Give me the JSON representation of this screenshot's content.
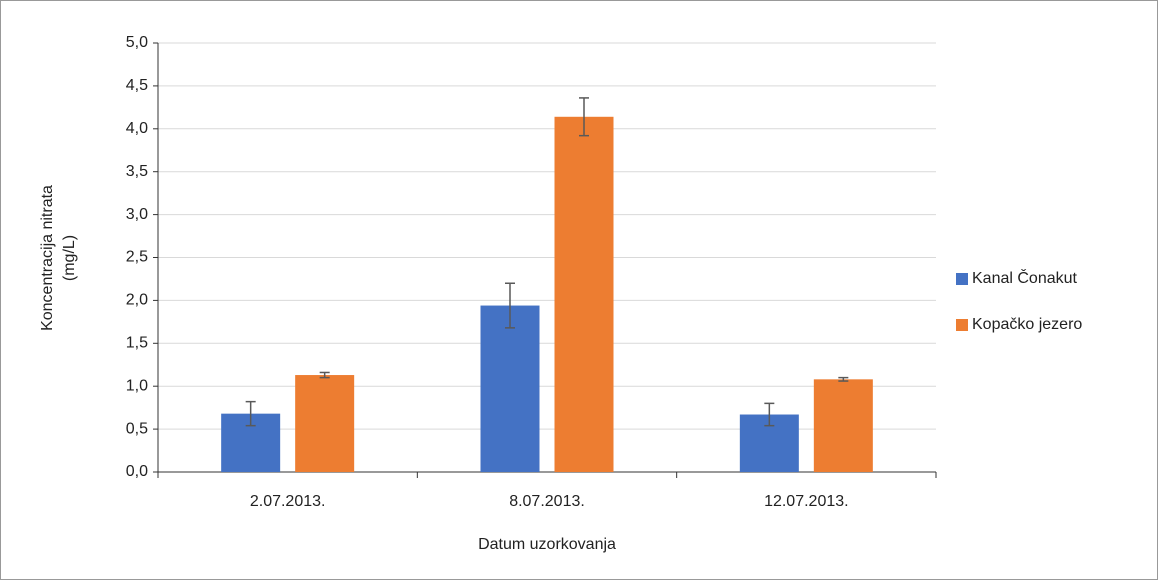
{
  "chart_data": {
    "type": "bar",
    "xlabel": "Datum uzorkovanja",
    "ylabel": [
      "Koncentracija nitrata",
      "(mg/L)"
    ],
    "categories": [
      "2.07.2013.",
      "8.07.2013.",
      "12.07.2013."
    ],
    "series": [
      {
        "name": "Kanal Čonakut",
        "color": "#4472c4",
        "values": [
          0.68,
          1.94,
          0.67
        ],
        "errors": [
          0.14,
          0.26,
          0.13
        ]
      },
      {
        "name": "Kopačko jezero",
        "color": "#ed7d31",
        "values": [
          1.13,
          4.14,
          1.08
        ],
        "errors": [
          0.03,
          0.22,
          0.02
        ]
      }
    ],
    "ylim": [
      0,
      5
    ],
    "yticks": [
      {
        "value": 0,
        "label": "0,0"
      },
      {
        "value": 0.5,
        "label": "0,5"
      },
      {
        "value": 1,
        "label": "1,0"
      },
      {
        "value": 1.5,
        "label": "1,5"
      },
      {
        "value": 2,
        "label": "2,0"
      },
      {
        "value": 2.5,
        "label": "2,5"
      },
      {
        "value": 3,
        "label": "3,0"
      },
      {
        "value": 3.5,
        "label": "3,5"
      },
      {
        "value": 4,
        "label": "4,0"
      },
      {
        "value": 4.5,
        "label": "4,5"
      },
      {
        "value": 5,
        "label": "5,0"
      }
    ],
    "grid": true,
    "legend": "right"
  }
}
